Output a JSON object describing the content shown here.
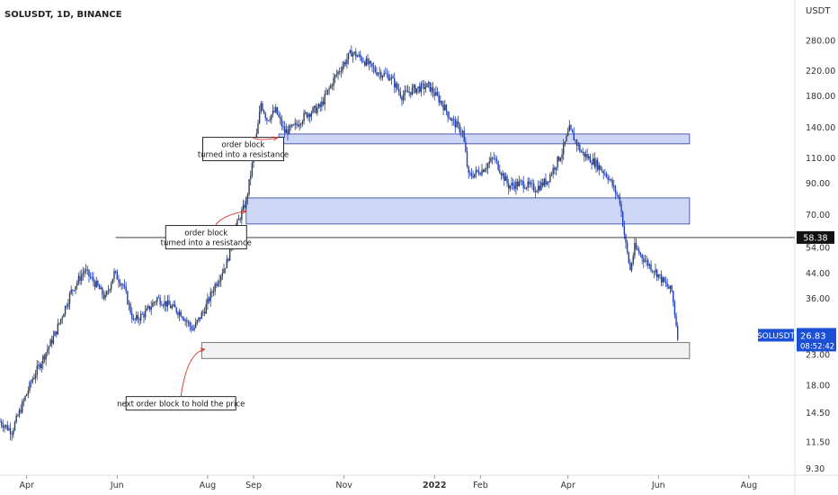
{
  "header": {
    "symbol_line": "SOLUSDT, 1D, BINANCE"
  },
  "chart_data": {
    "type": "candlestick",
    "symbol": "SOLUSDT",
    "interval": "1D",
    "exchange": "BINANCE",
    "scale": "log",
    "currency": "USDT",
    "y_ticks": [
      280,
      220,
      180,
      140,
      110,
      90,
      70,
      54,
      44,
      36,
      23,
      18,
      14.5,
      11.5,
      9.3
    ],
    "y_tick_labels": [
      "280.00",
      "220.00",
      "180.00",
      "140.00",
      "110.00",
      "90.00",
      "70.00",
      "54.00",
      "44.00",
      "36.00",
      "23.00",
      "18.00",
      "14.50",
      "11.50",
      "9.30"
    ],
    "x_ticks": [
      {
        "date": "2021-04-01",
        "label": "Apr"
      },
      {
        "date": "2021-06-01",
        "label": "Jun"
      },
      {
        "date": "2021-08-01",
        "label": "Aug"
      },
      {
        "date": "2021-09-01",
        "label": "Sep"
      },
      {
        "date": "2021-11-01",
        "label": "Nov"
      },
      {
        "date": "2022-01-01",
        "label": "2022"
      },
      {
        "date": "2022-02-01",
        "label": "Feb"
      },
      {
        "date": "2022-04-01",
        "label": "Apr"
      },
      {
        "date": "2022-06-01",
        "label": "Jun"
      },
      {
        "date": "2022-08-01",
        "label": "Aug"
      }
    ],
    "x_range": [
      "2021-03-14",
      "2022-09-01"
    ],
    "y_range": [
      9.0,
      330
    ],
    "price_path": [
      [
        "2021-03-14",
        13.5
      ],
      [
        "2021-03-22",
        12.5
      ],
      [
        "2021-04-05",
        19
      ],
      [
        "2021-04-20",
        27
      ],
      [
        "2021-05-01",
        38
      ],
      [
        "2021-05-10",
        45
      ],
      [
        "2021-05-18",
        40
      ],
      [
        "2021-05-24",
        36
      ],
      [
        "2021-05-30",
        44
      ],
      [
        "2021-06-05",
        40
      ],
      [
        "2021-06-12",
        30
      ],
      [
        "2021-06-20",
        32
      ],
      [
        "2021-06-28",
        36
      ],
      [
        "2021-07-06",
        34
      ],
      [
        "2021-07-14",
        32
      ],
      [
        "2021-07-22",
        28
      ],
      [
        "2021-07-30",
        33
      ],
      [
        "2021-08-06",
        40
      ],
      [
        "2021-08-14",
        48
      ],
      [
        "2021-08-20",
        63
      ],
      [
        "2021-08-27",
        78
      ],
      [
        "2021-09-02",
        120
      ],
      [
        "2021-09-06",
        170
      ],
      [
        "2021-09-10",
        150
      ],
      [
        "2021-09-16",
        160
      ],
      [
        "2021-09-22",
        135
      ],
      [
        "2021-09-28",
        140
      ],
      [
        "2021-10-06",
        155
      ],
      [
        "2021-10-16",
        165
      ],
      [
        "2021-10-26",
        210
      ],
      [
        "2021-11-06",
        255
      ],
      [
        "2021-11-14",
        240
      ],
      [
        "2021-11-22",
        220
      ],
      [
        "2021-12-02",
        210
      ],
      [
        "2021-12-10",
        180
      ],
      [
        "2021-12-18",
        190
      ],
      [
        "2021-12-28",
        195
      ],
      [
        "2022-01-06",
        170
      ],
      [
        "2022-01-12",
        150
      ],
      [
        "2022-01-20",
        135
      ],
      [
        "2022-01-24",
        95
      ],
      [
        "2022-02-02",
        100
      ],
      [
        "2022-02-10",
        110
      ],
      [
        "2022-02-20",
        88
      ],
      [
        "2022-03-01",
        90
      ],
      [
        "2022-03-10",
        86
      ],
      [
        "2022-03-18",
        92
      ],
      [
        "2022-03-28",
        115
      ],
      [
        "2022-04-02",
        138
      ],
      [
        "2022-04-10",
        115
      ],
      [
        "2022-04-20",
        105
      ],
      [
        "2022-04-28",
        95
      ],
      [
        "2022-05-06",
        78
      ],
      [
        "2022-05-10",
        55
      ],
      [
        "2022-05-13",
        45
      ],
      [
        "2022-05-16",
        54
      ],
      [
        "2022-05-24",
        48
      ],
      [
        "2022-05-31",
        44
      ],
      [
        "2022-06-06",
        40
      ],
      [
        "2022-06-10",
        38
      ],
      [
        "2022-06-14",
        26.83
      ]
    ],
    "level_lines": [
      {
        "price": 58.38,
        "label": "58.38",
        "start": "2021-05-31"
      }
    ],
    "zones": [
      {
        "start": "2021-09-18",
        "end": "2022-06-22",
        "low": 123,
        "high": 133
      },
      {
        "start": "2021-08-27",
        "end": "2022-06-22",
        "low": 65,
        "high": 80
      },
      {
        "start": "2021-07-28",
        "end": "2022-06-22",
        "low": 22.3,
        "high": 25.3
      }
    ],
    "annotations": [
      {
        "lines": [
          "order block",
          "turned into a resistance"
        ],
        "anchor_date": "2021-08-25",
        "anchor_price": 118,
        "arrow_to": [
          "2021-09-17",
          129
        ]
      },
      {
        "lines": [
          "order block",
          "turned into a resistance"
        ],
        "anchor_date": "2021-07-31",
        "anchor_price": 58.5,
        "arrow_to": [
          "2021-08-27",
          72
        ]
      },
      {
        "lines": [
          "next order block to hold the price"
        ],
        "anchor_date": "2021-07-14",
        "anchor_price": 15.6,
        "arrow_to": [
          "2021-07-30",
          24
        ]
      }
    ],
    "last_price": {
      "ticker": "SOLUSDT",
      "price": "26.83",
      "countdown": "08:52:42"
    },
    "colors": {
      "up": "#2f3d55",
      "down": "#1f3fbf",
      "price_tag": "#1a4fd6",
      "zone_blue": "#cdd6f5",
      "zone_grey": "#f2f2f2",
      "arrow": "#d9352f"
    }
  }
}
